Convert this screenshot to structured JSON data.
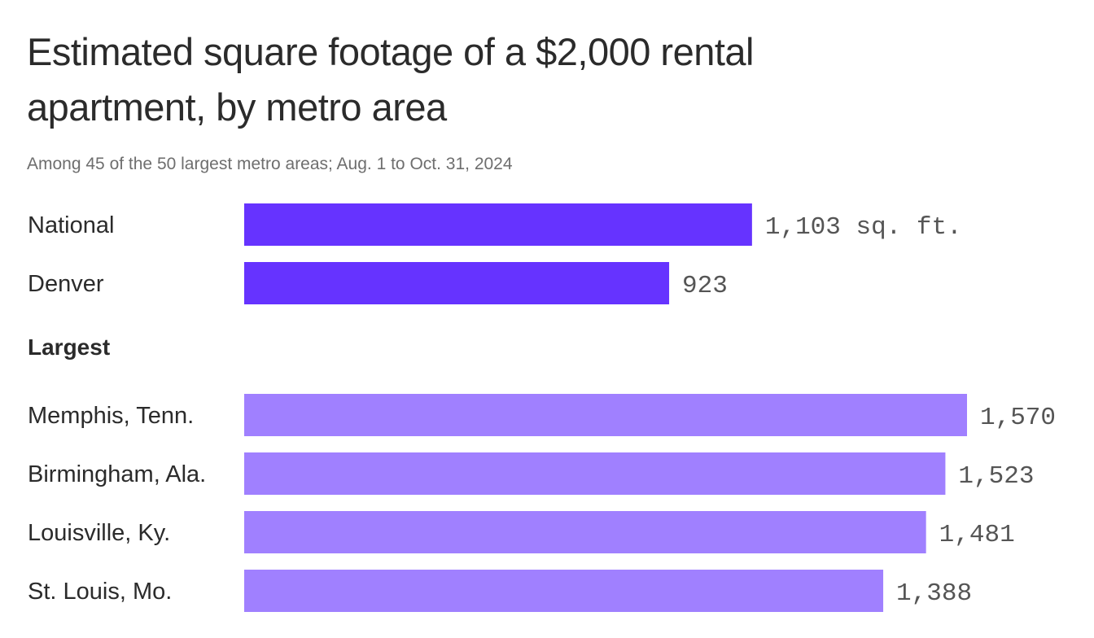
{
  "chart_data": {
    "type": "bar",
    "orientation": "horizontal",
    "title": "Estimated square footage of a $2,000 rental apartment, by metro area",
    "subtitle": "Among 45 of the 50 largest metro areas; Aug. 1 to Oct. 31, 2024",
    "xlim": [
      0,
      1570
    ],
    "grid": false,
    "unit_suffix": " sq. ft.",
    "groups": [
      {
        "label": "",
        "color": "#6633ff",
        "categories": [
          "National",
          "Denver"
        ],
        "values": [
          1103,
          923
        ],
        "value_labels": [
          "1,103 sq. ft.",
          "923"
        ]
      },
      {
        "label": "Largest",
        "color": "#a080ff",
        "categories": [
          "Memphis, Tenn.",
          "Birmingham, Ala.",
          "Louisville, Ky.",
          "St. Louis, Mo."
        ],
        "values": [
          1570,
          1523,
          1481,
          1388
        ],
        "value_labels": [
          "1,570",
          "1,523",
          "1,481",
          "1,388"
        ]
      }
    ]
  }
}
